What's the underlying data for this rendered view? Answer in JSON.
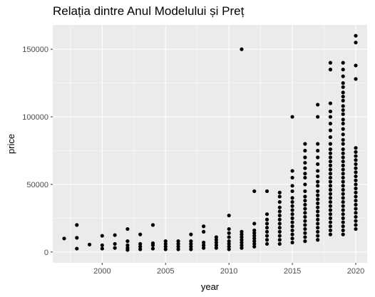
{
  "chart_data": {
    "type": "scatter",
    "title": "Relația dintre Anul Modelului și Preț",
    "xlabel": "year",
    "ylabel": "price",
    "xlim": [
      1996.1,
      2020.9
    ],
    "ylim": [
      -8000,
      168000
    ],
    "x_ticks": [
      2000,
      2005,
      2010,
      2015,
      2020
    ],
    "x_tick_labels": [
      "2000",
      "2005",
      "2010",
      "2015",
      "2020"
    ],
    "y_ticks": [
      0,
      50000,
      100000,
      150000
    ],
    "y_tick_labels": [
      "0",
      "50000",
      "100000",
      "150000"
    ],
    "grid": true,
    "colors": {
      "panel_bg": "#ebebeb",
      "grid_major": "#ffffff",
      "point": "#000000"
    },
    "points": [
      {
        "x": 1997,
        "y": 10000
      },
      {
        "x": 1998,
        "y": 2500
      },
      {
        "x": 1998,
        "y": 10500
      },
      {
        "x": 1998,
        "y": 20000
      },
      {
        "x": 1999,
        "y": 5500
      },
      {
        "x": 2000,
        "y": 2500
      },
      {
        "x": 2000,
        "y": 5000
      },
      {
        "x": 2000,
        "y": 12000
      },
      {
        "x": 2001,
        "y": 3000
      },
      {
        "x": 2001,
        "y": 6000
      },
      {
        "x": 2001,
        "y": 12500
      },
      {
        "x": 2002,
        "y": 1500
      },
      {
        "x": 2002,
        "y": 3000
      },
      {
        "x": 2002,
        "y": 5000
      },
      {
        "x": 2002,
        "y": 8000
      },
      {
        "x": 2002,
        "y": 17000
      },
      {
        "x": 2003,
        "y": 2000
      },
      {
        "x": 2003,
        "y": 4000
      },
      {
        "x": 2003,
        "y": 6000
      },
      {
        "x": 2003,
        "y": 13000
      },
      {
        "x": 2004,
        "y": 2500
      },
      {
        "x": 2004,
        "y": 5000
      },
      {
        "x": 2004,
        "y": 6500
      },
      {
        "x": 2004,
        "y": 20000
      },
      {
        "x": 2005,
        "y": 2000
      },
      {
        "x": 2005,
        "y": 4000
      },
      {
        "x": 2005,
        "y": 6000
      },
      {
        "x": 2005,
        "y": 8000
      },
      {
        "x": 2006,
        "y": 2000
      },
      {
        "x": 2006,
        "y": 4000
      },
      {
        "x": 2006,
        "y": 6000
      },
      {
        "x": 2006,
        "y": 8000
      },
      {
        "x": 2007,
        "y": 2000
      },
      {
        "x": 2007,
        "y": 4000
      },
      {
        "x": 2007,
        "y": 6000
      },
      {
        "x": 2007,
        "y": 8000
      },
      {
        "x": 2007,
        "y": 13000
      },
      {
        "x": 2008,
        "y": 3000
      },
      {
        "x": 2008,
        "y": 5000
      },
      {
        "x": 2008,
        "y": 7000
      },
      {
        "x": 2008,
        "y": 15000
      },
      {
        "x": 2008,
        "y": 19000
      },
      {
        "x": 2009,
        "y": 3000
      },
      {
        "x": 2009,
        "y": 5000
      },
      {
        "x": 2009,
        "y": 7000
      },
      {
        "x": 2009,
        "y": 9000
      },
      {
        "x": 2009,
        "y": 11000
      },
      {
        "x": 2010,
        "y": 2000
      },
      {
        "x": 2010,
        "y": 4000
      },
      {
        "x": 2010,
        "y": 6000
      },
      {
        "x": 2010,
        "y": 8000
      },
      {
        "x": 2010,
        "y": 11000
      },
      {
        "x": 2010,
        "y": 14000
      },
      {
        "x": 2010,
        "y": 17000
      },
      {
        "x": 2010,
        "y": 27000
      },
      {
        "x": 2011,
        "y": 3000
      },
      {
        "x": 2011,
        "y": 5000
      },
      {
        "x": 2011,
        "y": 7000
      },
      {
        "x": 2011,
        "y": 9000
      },
      {
        "x": 2011,
        "y": 11000
      },
      {
        "x": 2011,
        "y": 13000
      },
      {
        "x": 2011,
        "y": 15000
      },
      {
        "x": 2011,
        "y": 150000
      },
      {
        "x": 2012,
        "y": 4000
      },
      {
        "x": 2012,
        "y": 6000
      },
      {
        "x": 2012,
        "y": 8000
      },
      {
        "x": 2012,
        "y": 10000
      },
      {
        "x": 2012,
        "y": 12000
      },
      {
        "x": 2012,
        "y": 14000
      },
      {
        "x": 2012,
        "y": 16000
      },
      {
        "x": 2012,
        "y": 21000
      },
      {
        "x": 2012,
        "y": 45000
      },
      {
        "x": 2013,
        "y": 6000
      },
      {
        "x": 2013,
        "y": 9000
      },
      {
        "x": 2013,
        "y": 12000
      },
      {
        "x": 2013,
        "y": 15000
      },
      {
        "x": 2013,
        "y": 18000
      },
      {
        "x": 2013,
        "y": 21000
      },
      {
        "x": 2013,
        "y": 24000
      },
      {
        "x": 2013,
        "y": 28000
      },
      {
        "x": 2013,
        "y": 45000
      },
      {
        "x": 2014,
        "y": 6000
      },
      {
        "x": 2014,
        "y": 9000
      },
      {
        "x": 2014,
        "y": 12000
      },
      {
        "x": 2014,
        "y": 15000
      },
      {
        "x": 2014,
        "y": 18000
      },
      {
        "x": 2014,
        "y": 21000
      },
      {
        "x": 2014,
        "y": 24000
      },
      {
        "x": 2014,
        "y": 27000
      },
      {
        "x": 2014,
        "y": 30000
      },
      {
        "x": 2014,
        "y": 33000
      },
      {
        "x": 2014,
        "y": 37000
      },
      {
        "x": 2014,
        "y": 41000
      },
      {
        "x": 2014,
        "y": 44000
      },
      {
        "x": 2015,
        "y": 7000
      },
      {
        "x": 2015,
        "y": 10000
      },
      {
        "x": 2015,
        "y": 13000
      },
      {
        "x": 2015,
        "y": 16000
      },
      {
        "x": 2015,
        "y": 19000
      },
      {
        "x": 2015,
        "y": 22000
      },
      {
        "x": 2015,
        "y": 25000
      },
      {
        "x": 2015,
        "y": 28000
      },
      {
        "x": 2015,
        "y": 31000
      },
      {
        "x": 2015,
        "y": 34000
      },
      {
        "x": 2015,
        "y": 37000
      },
      {
        "x": 2015,
        "y": 40000
      },
      {
        "x": 2015,
        "y": 45000
      },
      {
        "x": 2015,
        "y": 49000
      },
      {
        "x": 2015,
        "y": 55000
      },
      {
        "x": 2015,
        "y": 60000
      },
      {
        "x": 2015,
        "y": 100000
      },
      {
        "x": 2016,
        "y": 8000
      },
      {
        "x": 2016,
        "y": 11000
      },
      {
        "x": 2016,
        "y": 14000
      },
      {
        "x": 2016,
        "y": 17000
      },
      {
        "x": 2016,
        "y": 20000
      },
      {
        "x": 2016,
        "y": 23000
      },
      {
        "x": 2016,
        "y": 26000
      },
      {
        "x": 2016,
        "y": 29000
      },
      {
        "x": 2016,
        "y": 32000
      },
      {
        "x": 2016,
        "y": 35000
      },
      {
        "x": 2016,
        "y": 38000
      },
      {
        "x": 2016,
        "y": 41000
      },
      {
        "x": 2016,
        "y": 45000
      },
      {
        "x": 2016,
        "y": 50000
      },
      {
        "x": 2016,
        "y": 55000
      },
      {
        "x": 2016,
        "y": 58000
      },
      {
        "x": 2016,
        "y": 62000
      },
      {
        "x": 2016,
        "y": 66000
      },
      {
        "x": 2016,
        "y": 70000
      },
      {
        "x": 2016,
        "y": 75000
      },
      {
        "x": 2016,
        "y": 80000
      },
      {
        "x": 2017,
        "y": 9000
      },
      {
        "x": 2017,
        "y": 12000
      },
      {
        "x": 2017,
        "y": 15000
      },
      {
        "x": 2017,
        "y": 18000
      },
      {
        "x": 2017,
        "y": 21000
      },
      {
        "x": 2017,
        "y": 24000
      },
      {
        "x": 2017,
        "y": 27000
      },
      {
        "x": 2017,
        "y": 30000
      },
      {
        "x": 2017,
        "y": 33000
      },
      {
        "x": 2017,
        "y": 36000
      },
      {
        "x": 2017,
        "y": 39000
      },
      {
        "x": 2017,
        "y": 42000
      },
      {
        "x": 2017,
        "y": 45000
      },
      {
        "x": 2017,
        "y": 49000
      },
      {
        "x": 2017,
        "y": 52000
      },
      {
        "x": 2017,
        "y": 56000
      },
      {
        "x": 2017,
        "y": 60000
      },
      {
        "x": 2017,
        "y": 65000
      },
      {
        "x": 2017,
        "y": 70000
      },
      {
        "x": 2017,
        "y": 75000
      },
      {
        "x": 2017,
        "y": 80000
      },
      {
        "x": 2017,
        "y": 100000
      },
      {
        "x": 2017,
        "y": 109000
      },
      {
        "x": 2018,
        "y": 13000
      },
      {
        "x": 2018,
        "y": 16000
      },
      {
        "x": 2018,
        "y": 19000
      },
      {
        "x": 2018,
        "y": 22000
      },
      {
        "x": 2018,
        "y": 25000
      },
      {
        "x": 2018,
        "y": 28000
      },
      {
        "x": 2018,
        "y": 31000
      },
      {
        "x": 2018,
        "y": 34000
      },
      {
        "x": 2018,
        "y": 37000
      },
      {
        "x": 2018,
        "y": 40000
      },
      {
        "x": 2018,
        "y": 43000
      },
      {
        "x": 2018,
        "y": 46000
      },
      {
        "x": 2018,
        "y": 49000
      },
      {
        "x": 2018,
        "y": 52000
      },
      {
        "x": 2018,
        "y": 55000
      },
      {
        "x": 2018,
        "y": 58000
      },
      {
        "x": 2018,
        "y": 61000
      },
      {
        "x": 2018,
        "y": 64000
      },
      {
        "x": 2018,
        "y": 67000
      },
      {
        "x": 2018,
        "y": 70000
      },
      {
        "x": 2018,
        "y": 73000
      },
      {
        "x": 2018,
        "y": 76000
      },
      {
        "x": 2018,
        "y": 80000
      },
      {
        "x": 2018,
        "y": 85000
      },
      {
        "x": 2018,
        "y": 90000
      },
      {
        "x": 2018,
        "y": 95000
      },
      {
        "x": 2018,
        "y": 100000
      },
      {
        "x": 2018,
        "y": 104000
      },
      {
        "x": 2018,
        "y": 110000
      },
      {
        "x": 2018,
        "y": 135000
      },
      {
        "x": 2018,
        "y": 140000
      },
      {
        "x": 2019,
        "y": 13000
      },
      {
        "x": 2019,
        "y": 16000
      },
      {
        "x": 2019,
        "y": 19000
      },
      {
        "x": 2019,
        "y": 22000
      },
      {
        "x": 2019,
        "y": 25000
      },
      {
        "x": 2019,
        "y": 28000
      },
      {
        "x": 2019,
        "y": 31000
      },
      {
        "x": 2019,
        "y": 34000
      },
      {
        "x": 2019,
        "y": 37000
      },
      {
        "x": 2019,
        "y": 40000
      },
      {
        "x": 2019,
        "y": 43000
      },
      {
        "x": 2019,
        "y": 46000
      },
      {
        "x": 2019,
        "y": 49000
      },
      {
        "x": 2019,
        "y": 52000
      },
      {
        "x": 2019,
        "y": 55000
      },
      {
        "x": 2019,
        "y": 58000
      },
      {
        "x": 2019,
        "y": 61000
      },
      {
        "x": 2019,
        "y": 64000
      },
      {
        "x": 2019,
        "y": 67000
      },
      {
        "x": 2019,
        "y": 70000
      },
      {
        "x": 2019,
        "y": 73000
      },
      {
        "x": 2019,
        "y": 76000
      },
      {
        "x": 2019,
        "y": 80000
      },
      {
        "x": 2019,
        "y": 83000
      },
      {
        "x": 2019,
        "y": 87000
      },
      {
        "x": 2019,
        "y": 91000
      },
      {
        "x": 2019,
        "y": 95000
      },
      {
        "x": 2019,
        "y": 98000
      },
      {
        "x": 2019,
        "y": 102000
      },
      {
        "x": 2019,
        "y": 105000
      },
      {
        "x": 2019,
        "y": 108000
      },
      {
        "x": 2019,
        "y": 112000
      },
      {
        "x": 2019,
        "y": 115000
      },
      {
        "x": 2019,
        "y": 118000
      },
      {
        "x": 2019,
        "y": 122000
      },
      {
        "x": 2019,
        "y": 125000
      },
      {
        "x": 2019,
        "y": 130000
      },
      {
        "x": 2019,
        "y": 135000
      },
      {
        "x": 2019,
        "y": 140000
      },
      {
        "x": 2020,
        "y": 17000
      },
      {
        "x": 2020,
        "y": 20000
      },
      {
        "x": 2020,
        "y": 23000
      },
      {
        "x": 2020,
        "y": 26000
      },
      {
        "x": 2020,
        "y": 29000
      },
      {
        "x": 2020,
        "y": 32000
      },
      {
        "x": 2020,
        "y": 35000
      },
      {
        "x": 2020,
        "y": 38000
      },
      {
        "x": 2020,
        "y": 41000
      },
      {
        "x": 2020,
        "y": 44000
      },
      {
        "x": 2020,
        "y": 47000
      },
      {
        "x": 2020,
        "y": 50000
      },
      {
        "x": 2020,
        "y": 53000
      },
      {
        "x": 2020,
        "y": 56000
      },
      {
        "x": 2020,
        "y": 59000
      },
      {
        "x": 2020,
        "y": 62000
      },
      {
        "x": 2020,
        "y": 65000
      },
      {
        "x": 2020,
        "y": 68000
      },
      {
        "x": 2020,
        "y": 71000
      },
      {
        "x": 2020,
        "y": 74000
      },
      {
        "x": 2020,
        "y": 77000
      },
      {
        "x": 2020,
        "y": 128000
      },
      {
        "x": 2020,
        "y": 138000
      },
      {
        "x": 2020,
        "y": 155000
      },
      {
        "x": 2020,
        "y": 160000
      }
    ]
  }
}
